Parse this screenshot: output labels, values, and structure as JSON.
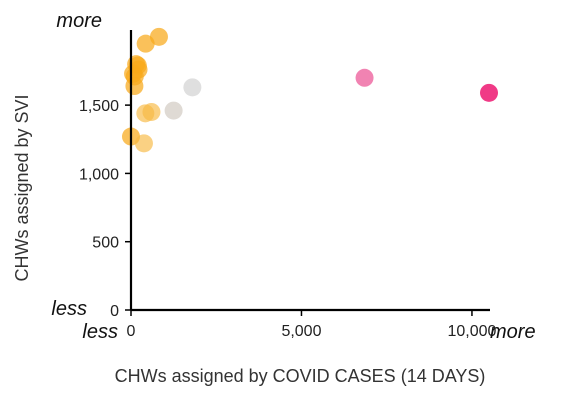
{
  "chart_data": {
    "type": "scatter",
    "title": "",
    "xlabel": "CHWs assigned by COVID CASES (14 DAYS)",
    "ylabel": "CHWs assigned by SVI",
    "xlim": [
      0,
      10500
    ],
    "ylim": [
      0,
      2050
    ],
    "x_ticks": [
      {
        "value": 0,
        "label": "0"
      },
      {
        "value": 5000,
        "label": "5,000"
      },
      {
        "value": 10000,
        "label": "10,000"
      }
    ],
    "y_ticks": [
      {
        "value": 0,
        "label": "0"
      },
      {
        "value": 500,
        "label": "500"
      },
      {
        "value": 1000,
        "label": "1,000"
      },
      {
        "value": 1500,
        "label": "1,500"
      }
    ],
    "x_end_labels": {
      "low": "less",
      "high": "more"
    },
    "y_end_labels": {
      "low": "less",
      "high": "more"
    },
    "grid": false,
    "points": [
      {
        "x": 820,
        "y": 2000,
        "color": "#f8a91a",
        "opacity": 0.72
      },
      {
        "x": 430,
        "y": 1950,
        "color": "#f8a91a",
        "opacity": 0.72
      },
      {
        "x": 150,
        "y": 1800,
        "color": "#f8a91a",
        "opacity": 0.72
      },
      {
        "x": 200,
        "y": 1790,
        "color": "#f8a91a",
        "opacity": 0.72
      },
      {
        "x": 220,
        "y": 1760,
        "color": "#f8a91a",
        "opacity": 0.72
      },
      {
        "x": 60,
        "y": 1730,
        "color": "#f8a91a",
        "opacity": 0.72
      },
      {
        "x": 110,
        "y": 1710,
        "color": "#f8a91a",
        "opacity": 0.72
      },
      {
        "x": 100,
        "y": 1640,
        "color": "#f8a91a",
        "opacity": 0.72
      },
      {
        "x": 1800,
        "y": 1630,
        "color": "#d9d9d9",
        "opacity": 0.85
      },
      {
        "x": 6850,
        "y": 1700,
        "color": "#ef6da4",
        "opacity": 0.85
      },
      {
        "x": 10500,
        "y": 1590,
        "color": "#ef2f7f",
        "opacity": 0.95
      },
      {
        "x": 1250,
        "y": 1460,
        "color": "#d9d3cc",
        "opacity": 0.85
      },
      {
        "x": 600,
        "y": 1450,
        "color": "#f8b840",
        "opacity": 0.65
      },
      {
        "x": 420,
        "y": 1440,
        "color": "#f8b840",
        "opacity": 0.65
      },
      {
        "x": 0,
        "y": 1270,
        "color": "#f8a91a",
        "opacity": 0.72
      },
      {
        "x": 380,
        "y": 1220,
        "color": "#f8b840",
        "opacity": 0.65
      }
    ]
  }
}
